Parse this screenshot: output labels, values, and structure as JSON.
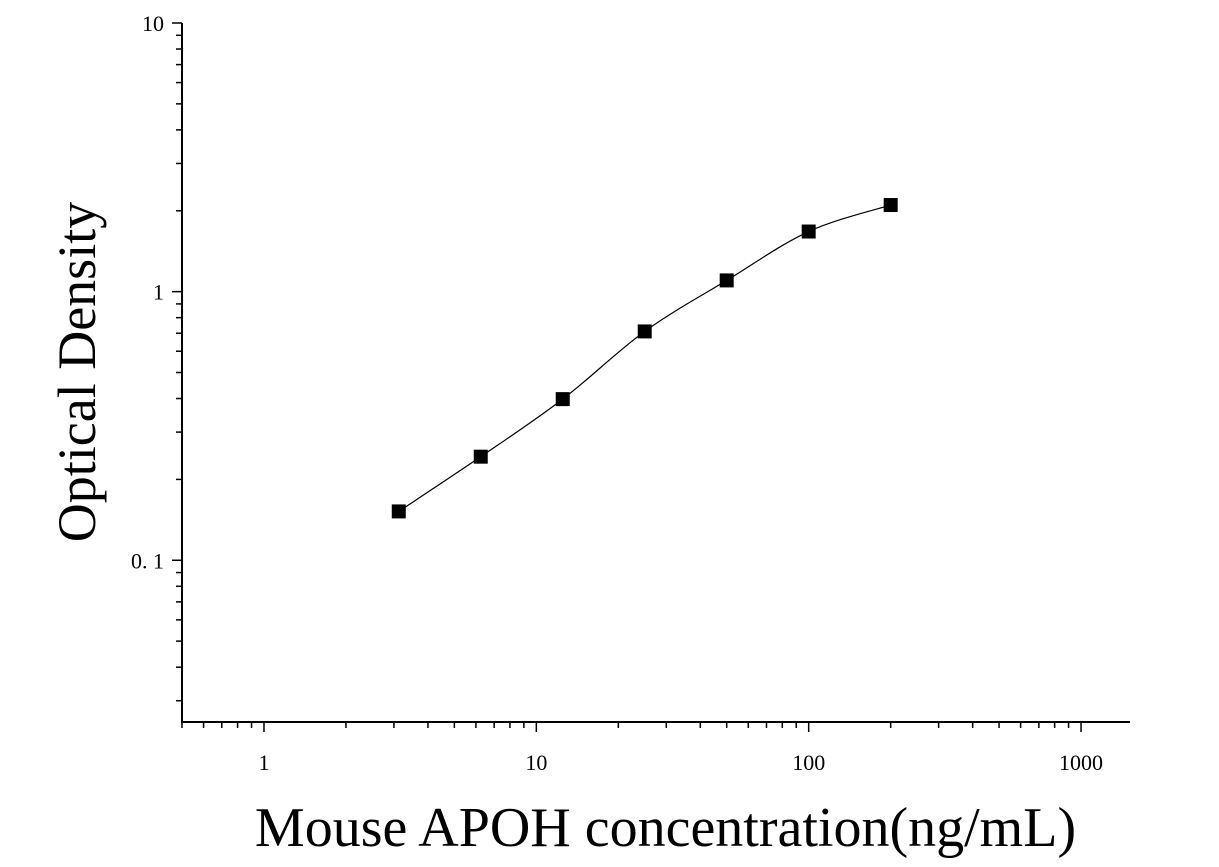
{
  "chart_data": {
    "type": "scatter",
    "xlabel": "Mouse APOH concentration(ng/mL)",
    "ylabel": "Optical Density",
    "x_scale": "log",
    "y_scale": "log",
    "xlim": [
      0.5,
      1500
    ],
    "ylim": [
      0.025,
      10
    ],
    "x_ticks": [
      {
        "value": 1,
        "label": "1"
      },
      {
        "value": 10,
        "label": "10"
      },
      {
        "value": 100,
        "label": "100"
      },
      {
        "value": 1000,
        "label": "1000"
      }
    ],
    "y_ticks": [
      {
        "value": 0.1,
        "label": "0. 1"
      },
      {
        "value": 1,
        "label": "1"
      },
      {
        "value": 10,
        "label": "10"
      }
    ],
    "grid": false,
    "marker": "square",
    "marker_color": "#000000",
    "line_color": "#000000",
    "points": [
      {
        "x": 3.125,
        "y": 0.152
      },
      {
        "x": 6.25,
        "y": 0.243
      },
      {
        "x": 12.5,
        "y": 0.398
      },
      {
        "x": 25,
        "y": 0.711
      },
      {
        "x": 50,
        "y": 1.101
      },
      {
        "x": 100,
        "y": 1.674
      },
      {
        "x": 200,
        "y": 2.101
      }
    ],
    "fit_curve": "four-parameter logistic"
  }
}
